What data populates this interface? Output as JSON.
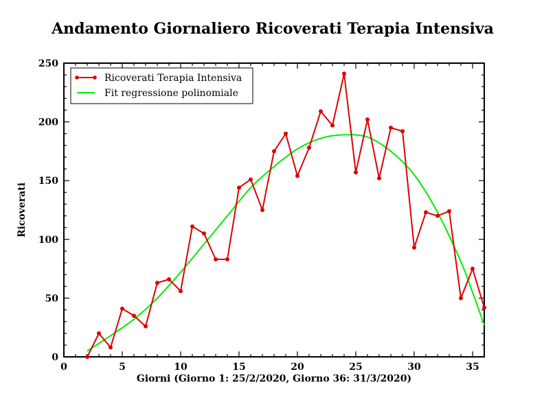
{
  "chart_data": {
    "type": "line",
    "title": "Andamento Giornaliero Ricoverati Terapia Intensiva",
    "xlabel": "Giorni   (Giorno 1: 25/2/2020, Giorno 36: 31/3/2020)",
    "ylabel": "Ricoverati",
    "xlim": [
      0,
      36
    ],
    "ylim": [
      0,
      250
    ],
    "xticks": [
      0,
      5,
      10,
      15,
      20,
      25,
      30,
      35
    ],
    "yticks": [
      0,
      50,
      100,
      150,
      200,
      250
    ],
    "grid": false,
    "legend_position": "top-left",
    "series": [
      {
        "name": "Ricoverati Terapia Intensiva",
        "kind": "line-markers",
        "color": "#dd0000",
        "x": [
          2,
          3,
          4,
          5,
          6,
          7,
          8,
          9,
          10,
          11,
          12,
          13,
          14,
          15,
          16,
          17,
          18,
          19,
          20,
          21,
          22,
          23,
          24,
          25,
          26,
          27,
          28,
          29,
          30,
          31,
          32,
          33,
          34,
          35,
          36
        ],
        "y": [
          0,
          20,
          8,
          41,
          35,
          26,
          63,
          66,
          56,
          111,
          105,
          83,
          83,
          144,
          151,
          125,
          175,
          190,
          154,
          178,
          209,
          197,
          241,
          157,
          202,
          152,
          195,
          192,
          93,
          123,
          120,
          124,
          50,
          75,
          42
        ]
      },
      {
        "name": "Fit regressione polinomiale",
        "kind": "fit-curve",
        "color": "#00ee00",
        "x": [
          2,
          4,
          6,
          8,
          10,
          12,
          14,
          16,
          18,
          20,
          22,
          24,
          26,
          28,
          30,
          32,
          34,
          35,
          36
        ],
        "y": [
          5,
          18,
          32,
          50,
          72,
          96,
          120,
          144,
          162,
          177,
          186,
          189,
          187,
          175,
          155,
          123,
          81,
          55,
          27
        ]
      }
    ]
  }
}
